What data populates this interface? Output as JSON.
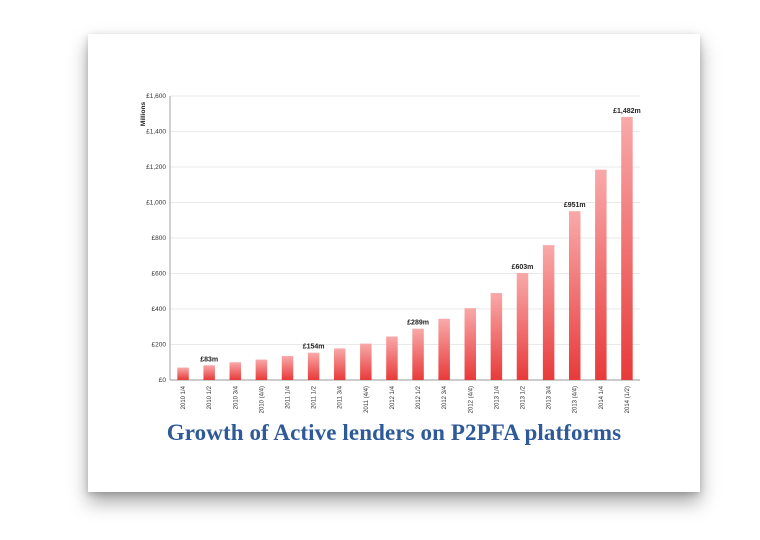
{
  "chart_data": {
    "type": "bar",
    "title": "",
    "caption": "Growth of Active lenders on P2PFA platforms",
    "xlabel": "",
    "ylabel": "Millions",
    "ylim": [
      0,
      1600
    ],
    "yticks": [
      0,
      200,
      400,
      600,
      800,
      1000,
      1200,
      1400,
      1600
    ],
    "ytick_labels": [
      "£0",
      "£200",
      "£400",
      "£600",
      "£800",
      "£1,000",
      "£1,200",
      "£1,400",
      "£1,600"
    ],
    "grid": true,
    "legend": "none",
    "categories": [
      "2010 1/4",
      "2010 1/2",
      "2010 3/4",
      "2010 (4/4)",
      "2011 1/4",
      "2011 1/2",
      "2011 3/4",
      "2011 (4/4)",
      "2012 1/4",
      "2012 1/2",
      "2012 3/4",
      "2012 (4/4)",
      "2013 1/4",
      "2013 1/2",
      "2013 3/4",
      "2013 (4/4)",
      "2014 1/4",
      "2014 (1/2)"
    ],
    "values": [
      70,
      83,
      100,
      115,
      135,
      154,
      178,
      205,
      245,
      289,
      345,
      405,
      490,
      603,
      760,
      951,
      1185,
      1482
    ],
    "data_labels": [
      "",
      "£83m",
      "",
      "",
      "",
      "£154m",
      "",
      "",
      "",
      "£289m",
      "",
      "",
      "",
      "£603m",
      "",
      "£951m",
      "",
      "£1,482m"
    ],
    "bar_color_top": "#f9a9a9",
    "bar_color_bottom": "#e83a3a"
  }
}
